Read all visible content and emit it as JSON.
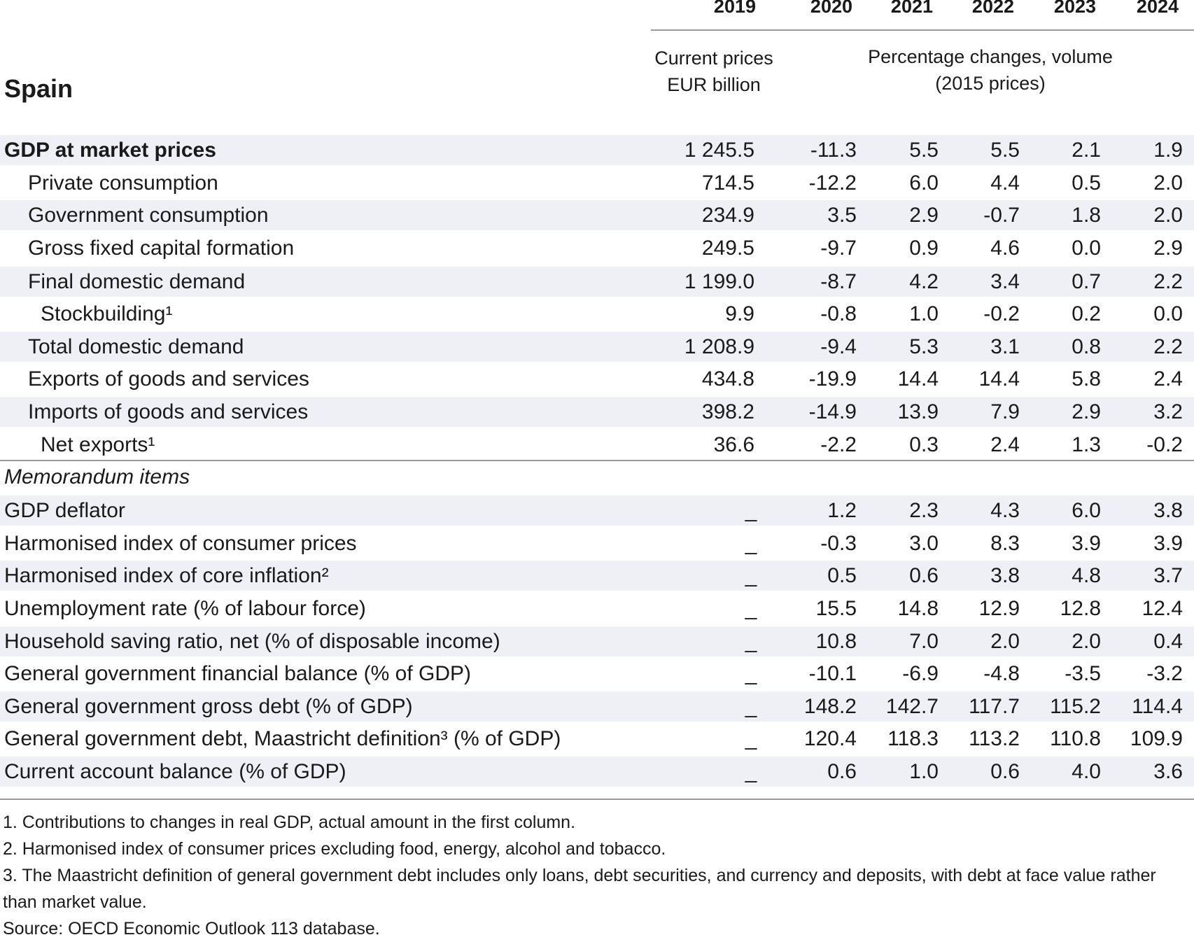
{
  "years": [
    "2019",
    "2020",
    "2021",
    "2022",
    "2023",
    "2024"
  ],
  "header": {
    "country": "Spain",
    "unit_left_line1": "Current prices",
    "unit_left_line2": "EUR billion",
    "unit_right_line1": "Percentage changes, volume",
    "unit_right_line2": "(2015 prices)"
  },
  "main_rows": [
    {
      "label": "GDP at market prices",
      "values": [
        "1 245.5",
        "-11.3",
        "5.5",
        "5.5",
        "2.1",
        "1.9"
      ]
    },
    {
      "label": "Private consumption",
      "values": [
        "714.5",
        "-12.2",
        "6.0",
        "4.4",
        "0.5",
        "2.0"
      ]
    },
    {
      "label": "Government consumption",
      "values": [
        "234.9",
        "3.5",
        "2.9",
        "-0.7",
        "1.8",
        "2.0"
      ]
    },
    {
      "label": "Gross fixed capital formation",
      "values": [
        "249.5",
        "-9.7",
        "0.9",
        "4.6",
        "0.0",
        "2.9"
      ]
    },
    {
      "label": "Final domestic demand",
      "values": [
        "1 199.0",
        "-8.7",
        "4.2",
        "3.4",
        "0.7",
        "2.2"
      ]
    },
    {
      "label": "Stockbuilding¹",
      "values": [
        "9.9",
        "-0.8",
        "1.0",
        "-0.2",
        "0.2",
        "0.0"
      ]
    },
    {
      "label": "Total domestic demand",
      "values": [
        "1 208.9",
        "-9.4",
        "5.3",
        "3.1",
        "0.8",
        "2.2"
      ]
    },
    {
      "label": "Exports of goods and services",
      "values": [
        "434.8",
        "-19.9",
        "14.4",
        "14.4",
        "5.8",
        "2.4"
      ]
    },
    {
      "label": "Imports of goods and services",
      "values": [
        "398.2",
        "-14.9",
        "13.9",
        "7.9",
        "2.9",
        "3.2"
      ]
    },
    {
      "label": "Net exports¹",
      "values": [
        "36.6",
        "-2.2",
        "0.3",
        "2.4",
        "1.3",
        "-0.2"
      ]
    }
  ],
  "memo_label": "Memorandum items",
  "dash_symbol": "_",
  "memo_rows": [
    {
      "label": "GDP deflator",
      "values": [
        "1.2",
        "2.3",
        "4.3",
        "6.0",
        "3.8"
      ]
    },
    {
      "label": "Harmonised index of consumer prices",
      "values": [
        "-0.3",
        "3.0",
        "8.3",
        "3.9",
        "3.9"
      ]
    },
    {
      "label": "Harmonised index of core inflation²",
      "values": [
        "0.5",
        "0.6",
        "3.8",
        "4.8",
        "3.7"
      ]
    },
    {
      "label": "Unemployment rate (% of labour force)",
      "values": [
        "15.5",
        "14.8",
        "12.9",
        "12.8",
        "12.4"
      ]
    },
    {
      "label": "Household saving ratio, net (% of disposable income)",
      "values": [
        "10.8",
        "7.0",
        "2.0",
        "2.0",
        "0.4"
      ]
    },
    {
      "label": "General government financial balance (% of GDP)",
      "values": [
        "-10.1",
        "-6.9",
        "-4.8",
        "-3.5",
        "-3.2"
      ]
    },
    {
      "label": "General government gross debt (% of GDP)",
      "values": [
        "148.2",
        "142.7",
        "117.7",
        "115.2",
        "114.4"
      ]
    },
    {
      "label": "General government debt, Maastricht definition³ (% of GDP)",
      "values": [
        "120.4",
        "118.3",
        "113.2",
        "110.8",
        "109.9"
      ]
    },
    {
      "label": "Current account balance (% of GDP)",
      "values": [
        "0.6",
        "1.0",
        "0.6",
        "4.0",
        "3.6"
      ]
    }
  ],
  "footnotes": [
    "1. Contributions to changes in real GDP, actual amount in the first column.",
    "2. Harmonised index of consumer prices excluding food, energy, alcohol and tobacco.",
    "3. The Maastricht definition of general government debt includes only loans, debt securities, and currency and deposits, with debt at face value rather than market value.",
    "Source: OECD Economic Outlook 113 database."
  ]
}
